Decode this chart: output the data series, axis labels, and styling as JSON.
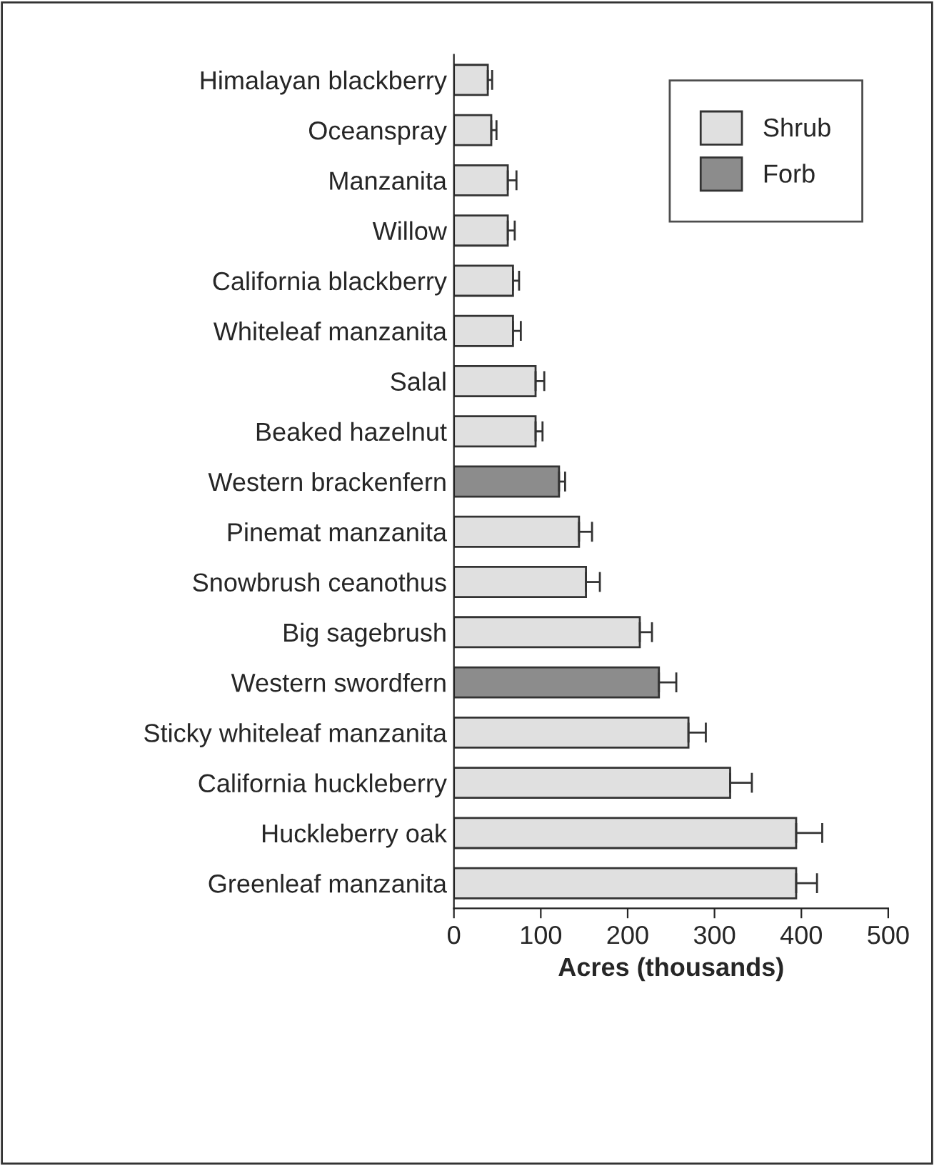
{
  "chart_data": {
    "type": "bar",
    "orientation": "horizontal",
    "xlabel": "Acres (thousands)",
    "categories": [
      "Himalayan blackberry",
      "Oceanspray",
      "Manzanita",
      "Willow",
      "California blackberry",
      "Whiteleaf manzanita",
      "Salal",
      "Beaked hazelnut",
      "Western brackenfern",
      "Pinemat manzanita",
      "Snowbrush ceanothus",
      "Big sagebrush",
      "Western swordfern",
      "Sticky whiteleaf manzanita",
      "California huckleberry",
      "Huckleberry oak",
      "Greenleaf manzanita"
    ],
    "series": [
      {
        "name": "Shrub",
        "color": "#e0e0e0",
        "values": [
          39,
          43,
          62,
          62,
          68,
          68,
          94,
          94,
          null,
          144,
          152,
          214,
          null,
          270,
          318,
          394,
          394
        ],
        "errors": [
          5,
          6,
          10,
          8,
          7,
          9,
          10,
          8,
          null,
          15,
          16,
          14,
          null,
          20,
          25,
          30,
          24
        ]
      },
      {
        "name": "Forb",
        "color": "#8c8c8c",
        "values": [
          null,
          null,
          null,
          null,
          null,
          null,
          null,
          null,
          121,
          null,
          null,
          null,
          236,
          null,
          null,
          null,
          null
        ],
        "errors": [
          null,
          null,
          null,
          null,
          null,
          null,
          null,
          null,
          7,
          null,
          null,
          null,
          20,
          null,
          null,
          null,
          null
        ]
      }
    ],
    "xlim": [
      0,
      500
    ],
    "xticks": [
      0,
      100,
      200,
      300,
      400,
      500
    ],
    "legend": "top right",
    "grid": false
  }
}
